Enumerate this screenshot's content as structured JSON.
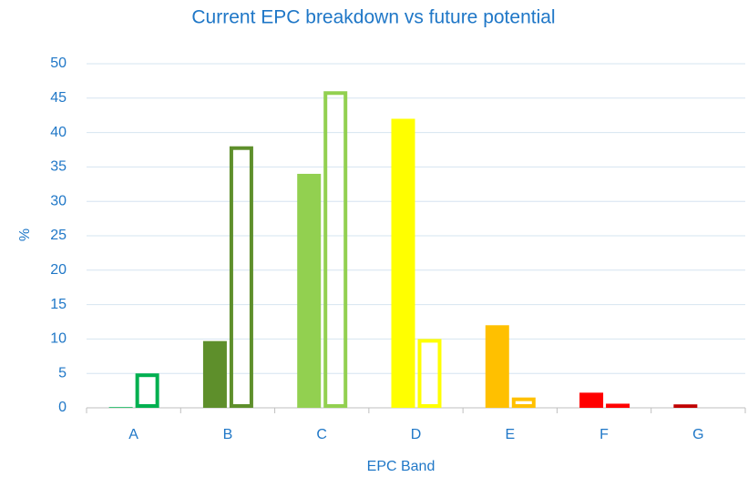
{
  "chart_data": {
    "type": "bar",
    "title": "Current EPC breakdown vs future potential",
    "x_label": "EPC Band",
    "y_label": "%",
    "categories": [
      "A",
      "B",
      "C",
      "D",
      "E",
      "F",
      "G"
    ],
    "colors": [
      "#00b050",
      "#5e8f2b",
      "#92d050",
      "#ffff00",
      "#ffc000",
      "#ff0000",
      "#c00000"
    ],
    "series": [
      {
        "outline": false,
        "values": [
          0.1,
          9.7,
          34,
          42,
          12,
          2.2,
          0.5
        ]
      },
      {
        "outline": true,
        "values": [
          5,
          38,
          46,
          10,
          1.5,
          0.6,
          0
        ]
      }
    ],
    "ylim": [
      0,
      50
    ],
    "yticks": [
      0,
      5,
      10,
      15,
      20,
      25,
      30,
      35,
      40,
      45,
      50
    ],
    "grid": true
  }
}
